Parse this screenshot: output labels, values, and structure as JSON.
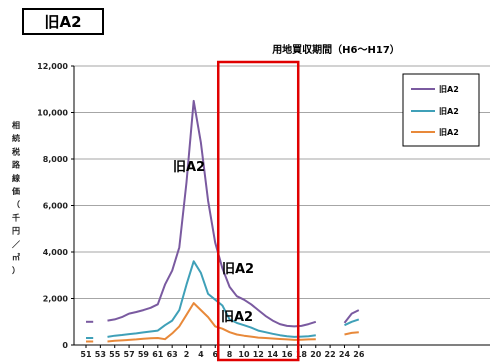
{
  "title": "旧A2",
  "period_label": "用地買収期間（H6～H17）",
  "ylabel_chars": [
    "相",
    "続",
    "税",
    "路",
    "線",
    "価",
    "（",
    "千",
    "円",
    "／",
    "㎡",
    "）"
  ],
  "colors": {
    "purple": "#7a5aa0",
    "teal": "#3fa0b8",
    "orange": "#e8893a",
    "period_box": "#e00000"
  },
  "chart_data": {
    "type": "line",
    "ylim": [
      0,
      12000
    ],
    "yticks": [
      "0",
      "2,000",
      "4,000",
      "6,000",
      "8,000",
      "10,000",
      "12,000"
    ],
    "yvalues": [
      0,
      2000,
      4000,
      6000,
      8000,
      10000,
      12000
    ],
    "xticks": [
      "51",
      "53",
      "55",
      "57",
      "59",
      "61",
      "63",
      "2",
      "4",
      "6",
      "8",
      "10",
      "12",
      "14",
      "16",
      "18",
      "20",
      "22",
      "24",
      "26"
    ],
    "period": {
      "start": "6",
      "end": "17",
      "label": "用地買収期間（H6～H17）"
    },
    "series": [
      {
        "name": "旧A2",
        "color": "#7a5aa0",
        "points": [
          [
            51,
            1000
          ],
          [
            52,
            1000
          ],
          null,
          [
            54,
            1050
          ],
          [
            55,
            1100
          ],
          [
            56,
            1200
          ],
          [
            57,
            1350
          ],
          [
            58,
            1420
          ],
          [
            59,
            1500
          ],
          [
            60,
            1600
          ],
          [
            61,
            1750
          ],
          [
            62,
            2600
          ],
          [
            63,
            3200
          ],
          [
            1,
            4200
          ],
          [
            2,
            7000
          ],
          [
            3,
            10500
          ],
          [
            4,
            8700
          ],
          [
            5,
            6200
          ],
          [
            6,
            4400
          ],
          [
            7,
            3300
          ],
          [
            8,
            2500
          ],
          [
            9,
            2100
          ],
          [
            10,
            1950
          ],
          [
            11,
            1750
          ],
          [
            12,
            1500
          ],
          [
            13,
            1250
          ],
          [
            14,
            1050
          ],
          [
            15,
            900
          ],
          [
            16,
            820
          ],
          [
            17,
            800
          ],
          [
            18,
            820
          ],
          [
            19,
            900
          ],
          [
            20,
            1000
          ],
          null,
          [
            24,
            950
          ],
          [
            25,
            1350
          ],
          [
            26,
            1500
          ]
        ]
      },
      {
        "name": "旧A2",
        "color": "#3fa0b8",
        "points": [
          [
            51,
            300
          ],
          [
            52,
            300
          ],
          null,
          [
            54,
            350
          ],
          [
            55,
            400
          ],
          [
            56,
            430
          ],
          [
            57,
            470
          ],
          [
            58,
            500
          ],
          [
            59,
            540
          ],
          [
            60,
            580
          ],
          [
            61,
            620
          ],
          [
            62,
            850
          ],
          [
            63,
            1050
          ],
          [
            1,
            1500
          ],
          [
            2,
            2600
          ],
          [
            3,
            3600
          ],
          [
            4,
            3100
          ],
          [
            5,
            2200
          ],
          [
            6,
            1950
          ],
          [
            7,
            1700
          ],
          [
            8,
            1100
          ],
          [
            9,
            950
          ],
          [
            10,
            850
          ],
          [
            11,
            750
          ],
          [
            12,
            620
          ],
          [
            13,
            550
          ],
          [
            14,
            480
          ],
          [
            15,
            420
          ],
          [
            16,
            380
          ],
          [
            17,
            350
          ],
          [
            18,
            360
          ],
          [
            19,
            380
          ],
          [
            20,
            420
          ],
          null,
          [
            24,
            850
          ],
          [
            25,
            1000
          ],
          [
            26,
            1100
          ]
        ]
      },
      {
        "name": "旧A2",
        "color": "#e8893a",
        "points": [
          [
            51,
            150
          ],
          [
            52,
            150
          ],
          null,
          [
            54,
            150
          ],
          [
            55,
            180
          ],
          [
            56,
            200
          ],
          [
            57,
            220
          ],
          [
            58,
            240
          ],
          [
            59,
            270
          ],
          [
            60,
            290
          ],
          [
            61,
            300
          ],
          [
            62,
            250
          ],
          [
            63,
            500
          ],
          [
            1,
            800
          ],
          [
            2,
            1300
          ],
          [
            3,
            1800
          ],
          [
            4,
            1500
          ],
          [
            5,
            1200
          ],
          [
            6,
            800
          ],
          [
            7,
            700
          ],
          [
            8,
            550
          ],
          [
            9,
            450
          ],
          [
            10,
            400
          ],
          [
            11,
            360
          ],
          [
            12,
            320
          ],
          [
            13,
            300
          ],
          [
            14,
            280
          ],
          [
            15,
            260
          ],
          [
            16,
            240
          ],
          [
            17,
            220
          ],
          [
            18,
            230
          ],
          [
            19,
            240
          ],
          [
            20,
            250
          ],
          null,
          [
            24,
            450
          ],
          [
            25,
            520
          ],
          [
            26,
            550
          ]
        ]
      }
    ],
    "legend": {
      "position": "top-right",
      "labels": [
        "旧A2",
        "旧A2",
        "旧A2"
      ]
    },
    "annotations": [
      "旧A2",
      "旧A2",
      "旧A2"
    ]
  }
}
